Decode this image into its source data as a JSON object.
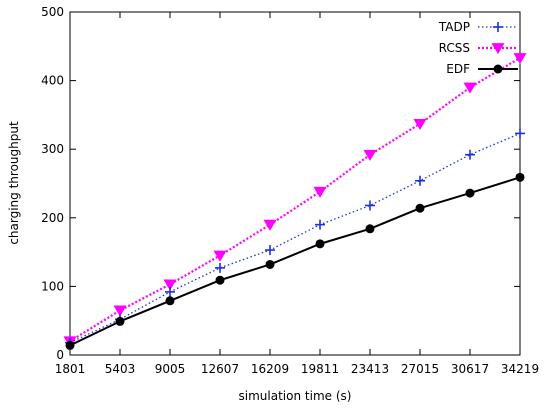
{
  "chart_data": {
    "type": "line",
    "xlabel": "simulation time (s)",
    "ylabel": "charging throughput",
    "ylim": [
      0,
      500
    ],
    "y_ticks": [
      0,
      100,
      200,
      300,
      400,
      500
    ],
    "x": [
      1801,
      5403,
      9005,
      12607,
      16209,
      19811,
      23413,
      27015,
      30617,
      34219
    ],
    "legend_position": "top-right",
    "grid": false,
    "series": [
      {
        "name": "TADP",
        "color": "#1f2fe0",
        "marker": "plus",
        "line": "dotted",
        "values": [
          18,
          52,
          92,
          127,
          153,
          190,
          218,
          254,
          292,
          323
        ]
      },
      {
        "name": "RCSS",
        "color": "#ff00ff",
        "marker": "triangle-down",
        "line": "dotted",
        "values": [
          20,
          65,
          103,
          145,
          190,
          238,
          292,
          337,
          390,
          433
        ]
      },
      {
        "name": "EDF",
        "color": "#000000",
        "marker": "circle",
        "line": "solid",
        "values": [
          14,
          49,
          79,
          109,
          132,
          162,
          184,
          214,
          236,
          259
        ]
      }
    ]
  }
}
